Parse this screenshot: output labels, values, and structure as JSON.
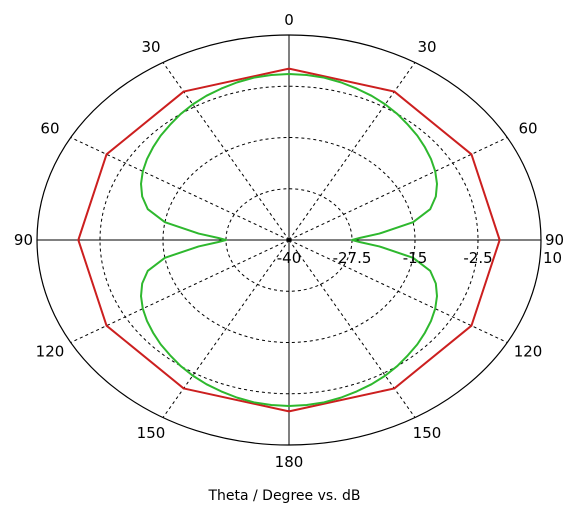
{
  "chart_data": {
    "type": "polar-line",
    "title": "",
    "xlabel": "Theta / Degree vs. dB",
    "angle_unit": "degree",
    "angle_ticks": [
      {
        "angle": 0,
        "label": "0"
      },
      {
        "angle": 30,
        "label": "30"
      },
      {
        "angle": 60,
        "label": "60"
      },
      {
        "angle": 90,
        "label": "90"
      },
      {
        "angle": 120,
        "label": "120"
      },
      {
        "angle": 150,
        "label": "150"
      },
      {
        "angle": 180,
        "label": "180"
      },
      {
        "angle": 210,
        "label": "150"
      },
      {
        "angle": 240,
        "label": "120"
      },
      {
        "angle": 270,
        "label": "90"
      },
      {
        "angle": 300,
        "label": "60"
      },
      {
        "angle": 330,
        "label": "30"
      }
    ],
    "radial_range": [
      -40,
      10
    ],
    "radial_unit": "dB",
    "radial_ticks": [
      "-40",
      "-27.5",
      "-15",
      "-2.5",
      "10"
    ],
    "radial_tick_values": [
      -40,
      -27.5,
      -15,
      -2.5,
      10
    ],
    "grid": true,
    "series": [
      {
        "color": "#cc1f1f",
        "theta": [
          0,
          30,
          60,
          90,
          120,
          150,
          180,
          210,
          240,
          270,
          300,
          330,
          360
        ],
        "values": [
          1.8,
          1.8,
          1.8,
          1.8,
          1.8,
          1.8,
          1.8,
          1.8,
          1.8,
          1.8,
          1.8,
          1.8,
          1.8
        ]
      },
      {
        "color": "#2eb82e",
        "theta": [
          0,
          5,
          10,
          15,
          20,
          25,
          30,
          35,
          40,
          45,
          50,
          55,
          60,
          65,
          70,
          75,
          80,
          85,
          88,
          90,
          92,
          95,
          100,
          105,
          110,
          115,
          120,
          125,
          130,
          135,
          140,
          145,
          150,
          155,
          160,
          165,
          170,
          175,
          180,
          185,
          190,
          195,
          200,
          205,
          210,
          215,
          220,
          225,
          230,
          235,
          240,
          245,
          250,
          255,
          260,
          265,
          268,
          270,
          272,
          275,
          280,
          285,
          290,
          295,
          300,
          305,
          310,
          315,
          320,
          325,
          330,
          335,
          340,
          345,
          350,
          355,
          360
        ],
        "values": [
          0.5,
          0.4,
          0.2,
          -0.2,
          -0.7,
          -1.2,
          -1.8,
          -2.5,
          -3.3,
          -4.0,
          -4.8,
          -5.6,
          -6.5,
          -7.6,
          -9.0,
          -11.0,
          -15.0,
          -22.0,
          -26.0,
          -27.5,
          -26.0,
          -22.0,
          -15.0,
          -11.0,
          -9.0,
          -7.6,
          -6.5,
          -5.6,
          -4.8,
          -4.0,
          -3.3,
          -2.5,
          -1.8,
          -1.2,
          -0.7,
          -0.2,
          0.2,
          0.4,
          0.5,
          0.4,
          0.2,
          -0.2,
          -0.7,
          -1.2,
          -1.8,
          -2.5,
          -3.3,
          -4.0,
          -4.8,
          -5.6,
          -6.5,
          -7.6,
          -9.0,
          -11.0,
          -15.0,
          -22.0,
          -26.0,
          -27.5,
          -26.0,
          -22.0,
          -15.0,
          -11.0,
          -9.0,
          -7.6,
          -6.5,
          -5.6,
          -4.8,
          -4.0,
          -3.3,
          -2.5,
          -1.8,
          -1.2,
          -0.7,
          -0.2,
          0.2,
          0.4,
          0.5
        ]
      }
    ]
  }
}
